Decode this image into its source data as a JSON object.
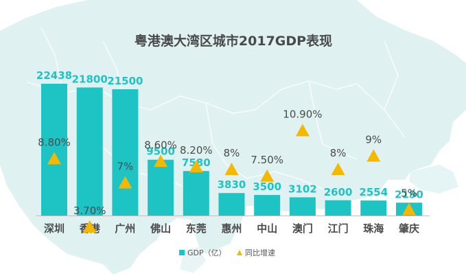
{
  "chart_data": {
    "type": "bar",
    "title": "粤港澳大湾区城市2017GDP表现",
    "categories": [
      "深圳",
      "香港",
      "广州",
      "佛山",
      "东莞",
      "惠州",
      "中山",
      "澳门",
      "江门",
      "珠海",
      "肇庆"
    ],
    "series": [
      {
        "name": "GDP（亿）",
        "type": "bar",
        "color": "#1ec3c3",
        "values": [
          22438,
          21800,
          21500,
          9500,
          7580,
          3830,
          3500,
          3102,
          2600,
          2554,
          2190
        ],
        "labels": [
          "22438",
          "21800",
          "21500",
          "9500",
          "7580",
          "3830",
          "3500",
          "3102",
          "2600",
          "2554",
          "2190"
        ]
      },
      {
        "name": "同比增速",
        "type": "marker-triangle",
        "color": "#f5b800",
        "values": [
          8.8,
          3.7,
          7,
          8.6,
          8.2,
          8,
          7.5,
          10.9,
          8,
          9,
          5
        ],
        "labels": [
          "8.80%",
          "3.70%",
          "7%",
          "8.60%",
          "8.20%",
          "8%",
          "7.50%",
          "10.90%",
          "8%",
          "9%",
          "5%"
        ]
      }
    ],
    "ylim": [
      0,
      24000
    ],
    "y2lim": [
      0,
      12
    ],
    "legend_position": "bottom-center",
    "grid": false,
    "background": "faded map of the Greater Bay Area"
  },
  "legend": {
    "gdp_label": "GDP（亿）",
    "growth_label": "同比增速"
  }
}
